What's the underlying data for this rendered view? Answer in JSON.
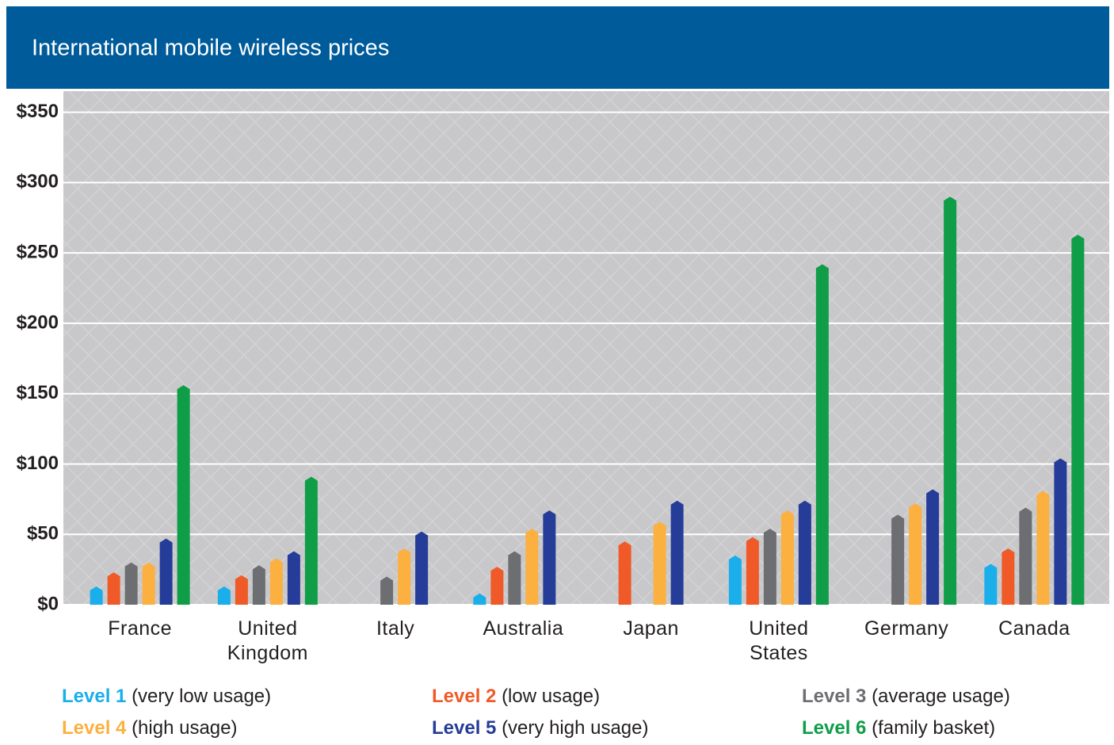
{
  "chart_data": {
    "type": "bar",
    "title": "International mobile wireless prices",
    "categories": [
      "France",
      "United Kingdom",
      "Italy",
      "Australia",
      "Japan",
      "United States",
      "Germany",
      "Canada"
    ],
    "series": [
      {
        "name": "Level 1",
        "usage": "(very low usage)",
        "color": "#1aaeeb",
        "values": [
          13,
          13,
          null,
          8,
          null,
          35,
          null,
          29
        ]
      },
      {
        "name": "Level 2",
        "usage": "(low usage)",
        "color": "#f05a28",
        "values": [
          23,
          21,
          null,
          27,
          45,
          48,
          null,
          40
        ]
      },
      {
        "name": "Level 3",
        "usage": "(average usage)",
        "color": "#6d6e71",
        "values": [
          30,
          28,
          20,
          38,
          null,
          54,
          64,
          69
        ]
      },
      {
        "name": "Level 4",
        "usage": "(high usage)",
        "color": "#fbb040",
        "values": [
          30,
          33,
          40,
          54,
          59,
          67,
          72,
          81
        ]
      },
      {
        "name": "Level 5",
        "usage": "(very high usage)",
        "color": "#253d98",
        "values": [
          47,
          38,
          52,
          67,
          74,
          74,
          82,
          104
        ]
      },
      {
        "name": "Level 6",
        "usage": "(family basket)",
        "color": "#0f9d48",
        "values": [
          156,
          91,
          null,
          null,
          null,
          242,
          290,
          263
        ]
      }
    ],
    "ylim": [
      0,
      365
    ],
    "yticks": [
      {
        "value": 0,
        "label": "$0"
      },
      {
        "value": 50,
        "label": "$50"
      },
      {
        "value": 100,
        "label": "$100"
      },
      {
        "value": 150,
        "label": "$150"
      },
      {
        "value": 200,
        "label": "$200"
      },
      {
        "value": 250,
        "label": "$250"
      },
      {
        "value": 300,
        "label": "$300"
      },
      {
        "value": 350,
        "label": "$350"
      }
    ],
    "grid": true
  }
}
